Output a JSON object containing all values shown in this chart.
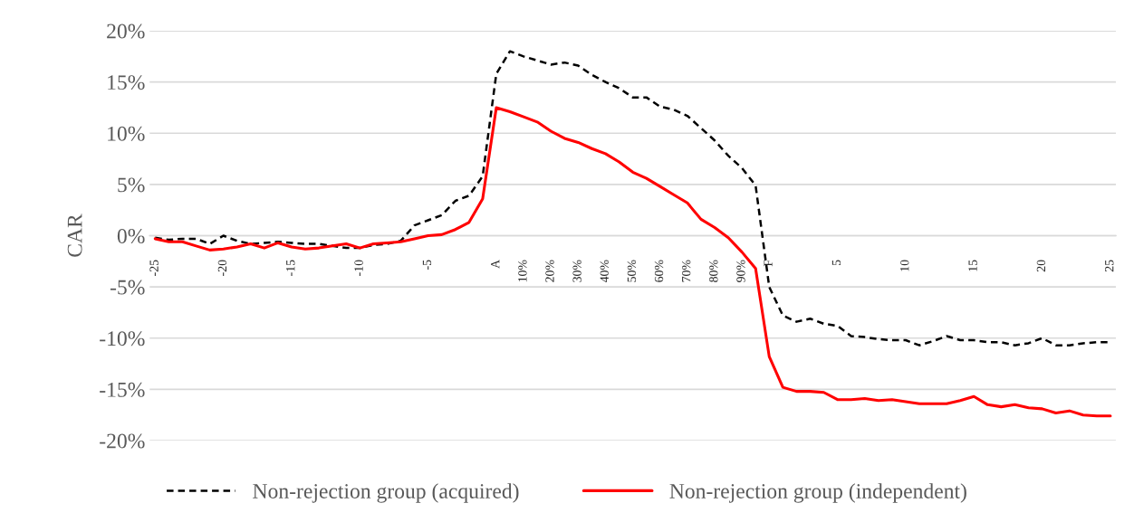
{
  "chart_data": {
    "type": "line",
    "ylabel": "CAR",
    "categories": [
      "-25",
      null,
      null,
      null,
      null,
      "-20",
      null,
      null,
      null,
      null,
      "-15",
      null,
      null,
      null,
      null,
      "-10",
      null,
      null,
      null,
      null,
      "-5",
      null,
      null,
      null,
      null,
      "A",
      null,
      "10%",
      null,
      "20%",
      null,
      "30%",
      null,
      "40%",
      null,
      "50%",
      null,
      "60%",
      null,
      "70%",
      null,
      "80%",
      null,
      "90%",
      null,
      "F",
      null,
      null,
      null,
      null,
      "5",
      null,
      null,
      null,
      null,
      "10",
      null,
      null,
      null,
      null,
      "15",
      null,
      null,
      null,
      null,
      "20",
      null,
      null,
      null,
      null,
      "25"
    ],
    "series": [
      {
        "name": "Non-rejection group (acquired)",
        "color": "#000000",
        "line_style": "dashed",
        "values": [
          -0.2,
          -0.4,
          -0.3,
          -0.3,
          -0.8,
          0.0,
          -0.5,
          -0.8,
          -0.7,
          -0.6,
          -0.7,
          -0.8,
          -0.8,
          -1.0,
          -1.2,
          -1.2,
          -0.9,
          -0.8,
          -0.5,
          1.0,
          1.5,
          2.0,
          3.4,
          3.9,
          5.8,
          15.8,
          18.0,
          17.5,
          17.1,
          16.7,
          16.9,
          16.6,
          15.7,
          15.0,
          14.4,
          13.5,
          13.5,
          12.6,
          12.3,
          11.7,
          10.5,
          9.3,
          7.8,
          6.6,
          4.9,
          -5.0,
          -7.8,
          -8.4,
          -8.1,
          -8.6,
          -8.8,
          -9.8,
          -9.9,
          -10.1,
          -10.2,
          -10.2,
          -10.7,
          -10.3,
          -9.8,
          -10.2,
          -10.2,
          -10.4,
          -10.4,
          -10.7,
          -10.5,
          -10.0,
          -10.7,
          -10.7,
          -10.5,
          -10.4,
          -10.4
        ]
      },
      {
        "name": "Non-rejection group (independent)",
        "color": "#ff0000",
        "line_style": "solid",
        "values": [
          -0.3,
          -0.6,
          -0.6,
          -1.0,
          -1.4,
          -1.3,
          -1.1,
          -0.8,
          -1.2,
          -0.7,
          -1.1,
          -1.3,
          -1.2,
          -1.0,
          -0.8,
          -1.2,
          -0.8,
          -0.7,
          -0.6,
          -0.3,
          0.0,
          0.1,
          0.6,
          1.3,
          3.6,
          12.5,
          12.1,
          11.6,
          11.1,
          10.2,
          9.5,
          9.1,
          8.5,
          8.0,
          7.2,
          6.2,
          5.6,
          4.8,
          4.0,
          3.2,
          1.6,
          0.8,
          -0.2,
          -1.6,
          -3.2,
          -11.8,
          -14.8,
          -15.2,
          -15.2,
          -15.3,
          -16.0,
          -16.0,
          -15.9,
          -16.1,
          -16.0,
          -16.2,
          -16.4,
          -16.4,
          -16.4,
          -16.1,
          -15.7,
          -16.5,
          -16.7,
          -16.5,
          -16.8,
          -16.9,
          -17.3,
          -17.1,
          -17.5,
          -17.6,
          -17.6
        ]
      }
    ],
    "ylim": [
      -20,
      20
    ],
    "yticks": [
      {
        "value": -20,
        "label": "-20%"
      },
      {
        "value": -15,
        "label": "-15%"
      },
      {
        "value": -10,
        "label": "-10%"
      },
      {
        "value": -5,
        "label": "-5%"
      },
      {
        "value": 0,
        "label": "0%"
      },
      {
        "value": 5,
        "label": "5%"
      },
      {
        "value": 10,
        "label": "10%"
      },
      {
        "value": 15,
        "label": "15%"
      },
      {
        "value": 20,
        "label": "20%"
      }
    ],
    "grid": "y",
    "legend": "bottom",
    "marker": "none"
  }
}
